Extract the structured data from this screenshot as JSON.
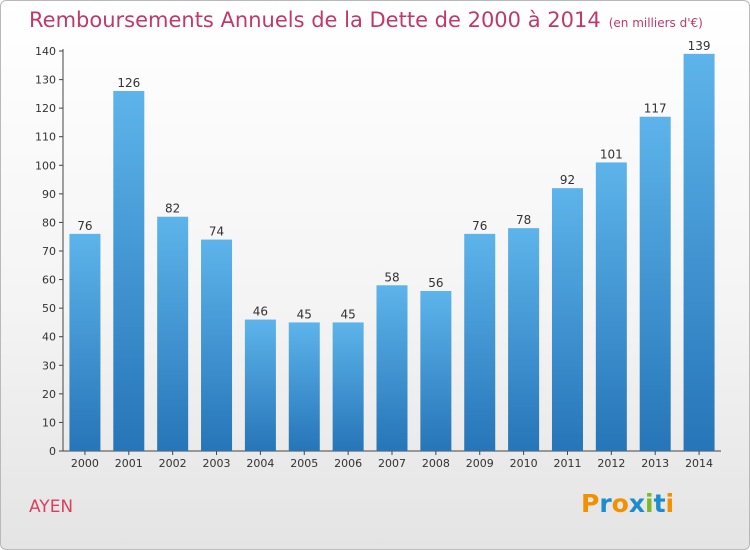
{
  "title": "Remboursements Annuels de la Dette de 2000 à 2014",
  "unit_note": "(en milliers d'€)",
  "commune": "AYEN",
  "logo_text": "Proxiti",
  "colors": {
    "title": "#c0396b",
    "bar_top": "#5db4ea",
    "bar_bottom": "#2675b8",
    "commune": "#d9405e",
    "logo_letters": [
      "#f29100",
      "#1c8bcf",
      "#f29100",
      "#1c8bcf",
      "#7ab929",
      "#1c8bcf",
      "#f29100"
    ]
  },
  "chart_data": {
    "type": "bar",
    "title": "Remboursements Annuels de la Dette de 2000 à 2014",
    "subtitle": "(en milliers d'€)",
    "categories": [
      "2000",
      "2001",
      "2002",
      "2003",
      "2004",
      "2005",
      "2006",
      "2007",
      "2008",
      "2009",
      "2010",
      "2011",
      "2012",
      "2013",
      "2014"
    ],
    "values": [
      76,
      126,
      82,
      74,
      46,
      45,
      45,
      58,
      56,
      76,
      78,
      92,
      101,
      117,
      139
    ],
    "ylim": [
      0,
      140
    ],
    "yticks": [
      0,
      10,
      20,
      30,
      40,
      50,
      60,
      70,
      80,
      90,
      100,
      110,
      120,
      130,
      140
    ],
    "grid": false,
    "data_labels": true
  }
}
